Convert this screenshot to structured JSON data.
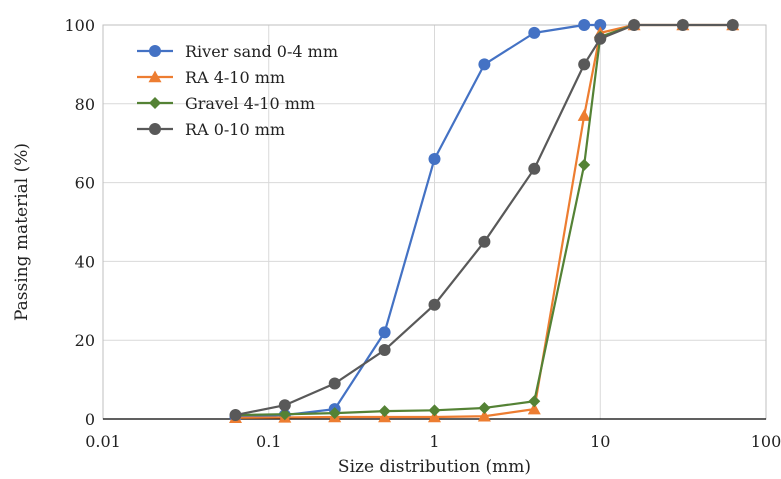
{
  "chart_data": {
    "type": "line",
    "title": "",
    "xlabel": "Size distribution (mm)",
    "ylabel": "Passing material (%)",
    "xscale": "log",
    "xlim": [
      0.01,
      100
    ],
    "ylim": [
      0,
      100
    ],
    "x_ticks": [
      0.01,
      0.1,
      1,
      10,
      100
    ],
    "x_tick_labels": [
      "0.01",
      "0.1",
      "1",
      "10",
      "100"
    ],
    "y_ticks": [
      0,
      20,
      40,
      60,
      80,
      100
    ],
    "y_tick_labels": [
      "0",
      "20",
      "40",
      "60",
      "80",
      "100"
    ],
    "grid": true,
    "legend_position": "top-left",
    "series": [
      {
        "name": "River sand 0-4 mm",
        "color": "#4472C4",
        "marker": "circle",
        "x": [
          0.063,
          0.125,
          0.25,
          0.5,
          1,
          2,
          4,
          8,
          10
        ],
        "y": [
          0.5,
          1,
          2.5,
          22,
          66,
          90,
          98,
          100,
          100
        ]
      },
      {
        "name": "RA 4-10 mm",
        "color": "#ED7D31",
        "marker": "triangle",
        "x": [
          0.063,
          0.125,
          0.25,
          0.5,
          1,
          2,
          4,
          8,
          10,
          16,
          31.5,
          63
        ],
        "y": [
          0.3,
          0.4,
          0.5,
          0.5,
          0.5,
          0.7,
          2.5,
          77,
          98,
          100,
          100,
          100
        ]
      },
      {
        "name": "Gravel 4-10 mm",
        "color": "#548235",
        "marker": "diamond",
        "x": [
          0.063,
          0.125,
          0.25,
          0.5,
          1,
          2,
          4,
          8,
          10,
          16
        ],
        "y": [
          1,
          1.2,
          1.5,
          2,
          2.2,
          2.8,
          4.5,
          64.5,
          97,
          100
        ]
      },
      {
        "name": "RA 0-10 mm",
        "color": "#595959",
        "marker": "circle",
        "x": [
          0.063,
          0.125,
          0.25,
          0.5,
          1,
          2,
          4,
          8,
          10,
          16,
          31.5,
          63
        ],
        "y": [
          1,
          3.5,
          9,
          17.5,
          29,
          45,
          63.5,
          90,
          96.5,
          100,
          100,
          100
        ]
      }
    ]
  }
}
